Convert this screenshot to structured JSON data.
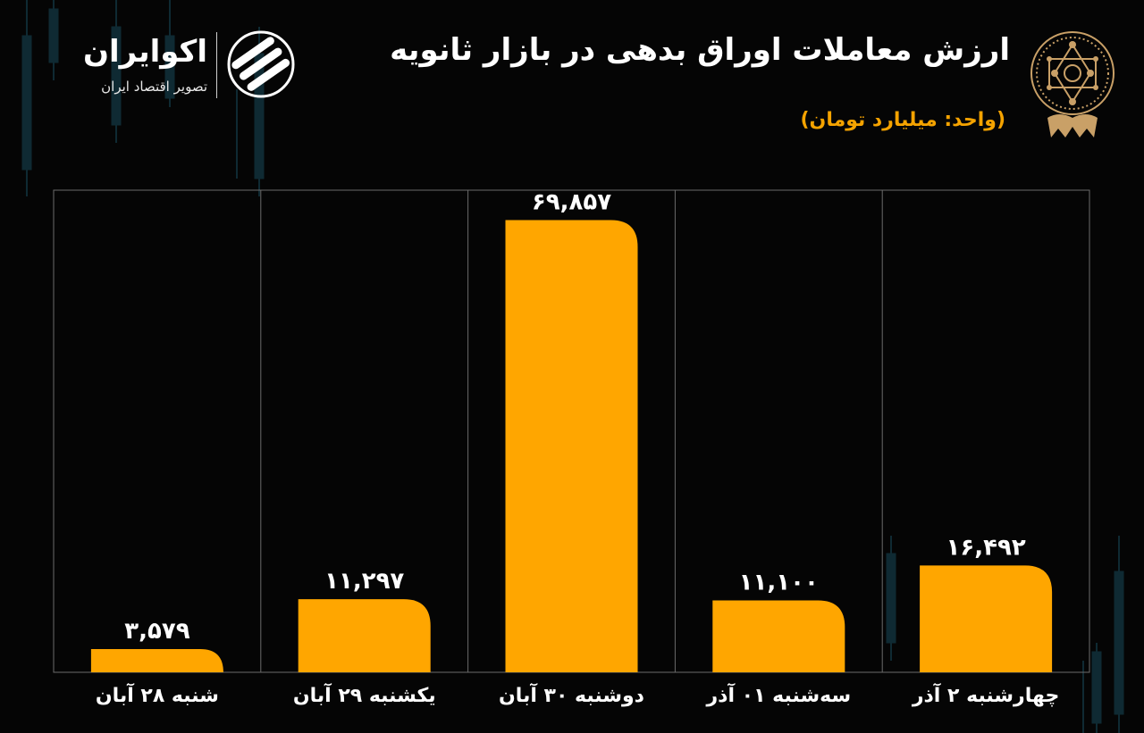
{
  "header": {
    "title": "ارزش معاملات اوراق بدهی در بازار ثانویه",
    "unit": "(واحد: میلیارد تومان)"
  },
  "brand": {
    "name": "اکوایران",
    "subtitle": "تصویر اقتصاد ایران"
  },
  "colors": {
    "background": "#050505",
    "bar": "#ffa600",
    "accent_text": "#f5a300",
    "emblem": "#c9a067",
    "grid": "#6b6b6b"
  },
  "chart_data": {
    "type": "bar",
    "categories": [
      "شنبه ۲۸ آبان",
      "یکشنبه ۲۹ آبان",
      "دوشنبه ۳۰ آبان",
      "سه‌شنبه ۰۱ آذر",
      "چهارشنبه ۲ آذر"
    ],
    "values": [
      3579,
      11297,
      69857,
      11100,
      16492
    ],
    "value_labels": [
      "۳,۵۷۹",
      "۱۱,۲۹۷",
      "۶۹,۸۵۷",
      "۱۱,۱۰۰",
      "۱۶,۴۹۲"
    ],
    "ylim": [
      0,
      80000
    ],
    "grid": "vertical separators between categories",
    "legend": "none"
  }
}
